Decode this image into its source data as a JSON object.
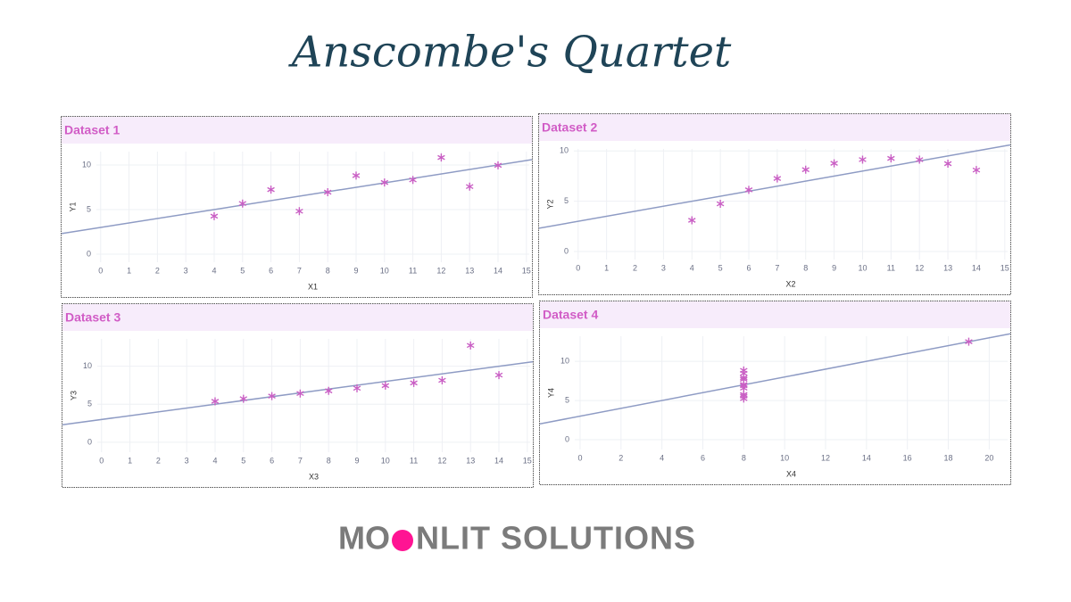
{
  "title": "Anscombe's Quartet",
  "footer": {
    "logo_left": "MO",
    "logo_right": "NLIT SOLUTIONS"
  },
  "chart_data": [
    {
      "type": "scatter",
      "title": "Dataset 1",
      "x_label": "X1",
      "y_label": "Y1",
      "x": [
        10,
        8,
        13,
        9,
        11,
        14,
        6,
        4,
        12,
        7,
        5
      ],
      "y": [
        8.04,
        6.95,
        7.58,
        8.81,
        8.33,
        9.96,
        7.24,
        4.26,
        10.84,
        4.82,
        5.68
      ],
      "trendline": {
        "intercept": 3,
        "slope": 0.5
      },
      "xlim": [
        -0.15,
        15.1
      ],
      "ylim": [
        -0.9,
        11.5
      ],
      "xticks": [
        0,
        1,
        2,
        3,
        4,
        5,
        6,
        7,
        8,
        9,
        10,
        11,
        12,
        13,
        14,
        15
      ],
      "yticks": [
        0,
        5,
        10
      ],
      "grid": true,
      "point_color": "#c95fc4",
      "line_color": "#8e9bc4"
    },
    {
      "type": "scatter",
      "title": "Dataset 2",
      "x_label": "X2",
      "y_label": "Y2",
      "x": [
        10,
        8,
        13,
        9,
        11,
        14,
        6,
        4,
        12,
        7,
        5
      ],
      "y": [
        9.14,
        8.14,
        8.74,
        8.77,
        9.26,
        8.1,
        6.13,
        3.1,
        9.13,
        7.26,
        4.74
      ],
      "trendline": {
        "intercept": 3,
        "slope": 0.5
      },
      "xlim": [
        -0.15,
        15.1
      ],
      "ylim": [
        -0.8,
        10.2
      ],
      "xticks": [
        0,
        1,
        2,
        3,
        4,
        5,
        6,
        7,
        8,
        9,
        10,
        11,
        12,
        13,
        14,
        15
      ],
      "yticks": [
        0,
        5,
        10
      ],
      "grid": true,
      "point_color": "#c95fc4",
      "line_color": "#8e9bc4"
    },
    {
      "type": "scatter",
      "title": "Dataset 3",
      "x_label": "X3",
      "y_label": "Y3",
      "x": [
        10,
        8,
        13,
        9,
        11,
        14,
        6,
        4,
        12,
        7,
        5
      ],
      "y": [
        7.46,
        6.77,
        12.74,
        7.11,
        7.81,
        8.84,
        6.08,
        5.39,
        8.15,
        6.42,
        5.73
      ],
      "trendline": {
        "intercept": 3,
        "slope": 0.5
      },
      "xlim": [
        -0.15,
        15.1
      ],
      "ylim": [
        -1.3,
        13.6
      ],
      "xticks": [
        0,
        1,
        2,
        3,
        4,
        5,
        6,
        7,
        8,
        9,
        10,
        11,
        12,
        13,
        14,
        15
      ],
      "yticks": [
        0,
        5,
        10
      ],
      "grid": true,
      "point_color": "#c95fc4",
      "line_color": "#8e9bc4"
    },
    {
      "type": "scatter",
      "title": "Dataset 4",
      "x_label": "X4",
      "y_label": "Y4",
      "x": [
        8,
        8,
        8,
        8,
        8,
        8,
        8,
        19,
        8,
        8,
        8
      ],
      "y": [
        6.58,
        5.76,
        7.71,
        8.84,
        8.47,
        7.04,
        5.25,
        12.5,
        5.56,
        7.91,
        6.89
      ],
      "trendline": {
        "intercept": 3,
        "slope": 0.5
      },
      "xlim": [
        -0.26,
        20.9
      ],
      "ylim": [
        -1.25,
        13.2
      ],
      "xticks": [
        0,
        2,
        4,
        6,
        8,
        10,
        12,
        14,
        16,
        18,
        20
      ],
      "yticks": [
        0,
        5,
        10
      ],
      "grid": true,
      "point_color": "#c95fc4",
      "line_color": "#8e9bc4"
    }
  ]
}
